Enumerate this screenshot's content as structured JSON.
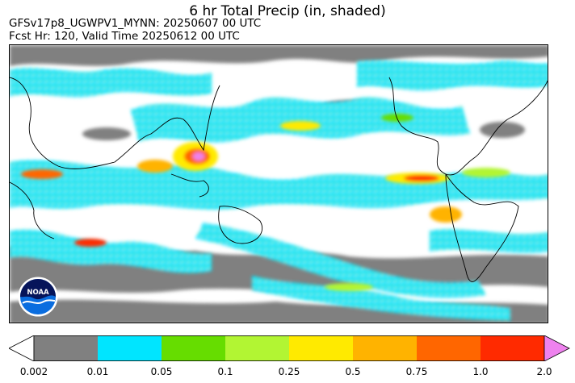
{
  "title": "6 hr Total Precip (in, shaded)",
  "model_line": "GFSv17p8_UGWPV1_MYNN: 20250607 00 UTC",
  "forecast_line": "Fcst Hr: 120, Valid Time 20250612 00 UTC",
  "logo": {
    "text": "NOAA",
    "icon": "noaa-logo-icon"
  },
  "colorbar": {
    "ticks": [
      "0.002",
      "0.01",
      "0.05",
      "0.1",
      "0.25",
      "0.5",
      "0.75",
      "1.0",
      "2.0"
    ],
    "colors": [
      "#ffffff",
      "#808080",
      "#00e5ff",
      "#66dd00",
      "#b2f533",
      "#ffea00",
      "#ffb300",
      "#ff6600",
      "#ff2a00",
      "#ee82ee"
    ]
  }
}
